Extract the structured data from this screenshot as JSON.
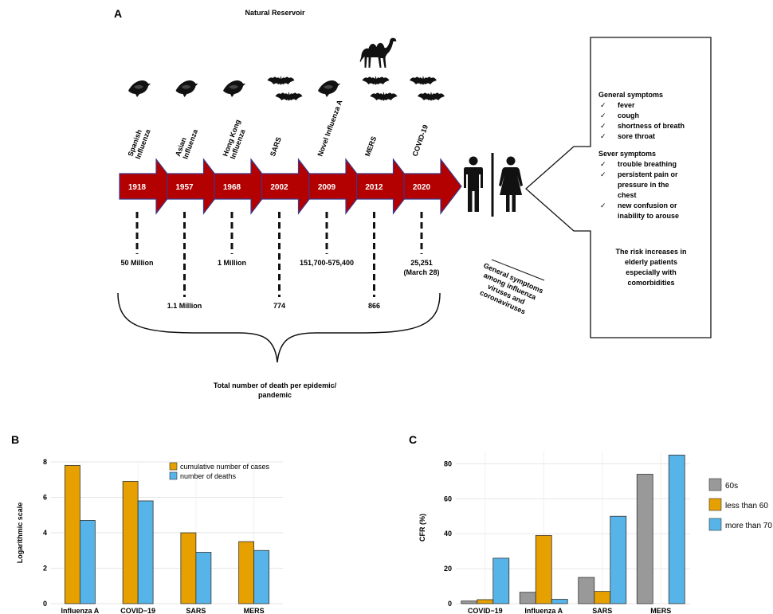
{
  "panel_a": {
    "label": "A",
    "reservoir_title": "Natural Reservoir",
    "events": [
      {
        "name_lines": [
          "Spanish",
          "Influenza"
        ],
        "year": "1918",
        "reservoir": "bird",
        "deaths": "50 Million",
        "deaths_sub": ""
      },
      {
        "name_lines": [
          "Asian",
          "Influenza"
        ],
        "year": "1957",
        "reservoir": "bird",
        "deaths": "1.1 Million",
        "deaths_sub": ""
      },
      {
        "name_lines": [
          "Hong Kong",
          "Influenza"
        ],
        "year": "1968",
        "reservoir": "bird",
        "deaths": "1 Million",
        "deaths_sub": ""
      },
      {
        "name_lines": [
          "SARS"
        ],
        "year": "2002",
        "reservoir": "bat",
        "deaths": "774",
        "deaths_sub": ""
      },
      {
        "name_lines": [
          "Novel Influenza A"
        ],
        "year": "2009",
        "reservoir": "bird",
        "deaths": "151,700-575,400",
        "deaths_sub": ""
      },
      {
        "name_lines": [
          "MERS"
        ],
        "year": "2012",
        "reservoir": "bat-camel",
        "deaths": "866",
        "deaths_sub": ""
      },
      {
        "name_lines": [
          "COVID-19"
        ],
        "year": "2020",
        "reservoir": "bat",
        "deaths": "25,251",
        "deaths_sub": "(March 28)"
      }
    ],
    "total_label_lines": [
      "Total number of death per epidemic/",
      "pandemic"
    ],
    "symptoms_caption_lines": [
      "General symptoms",
      "among influenza",
      "viruses and",
      "coronaviruses"
    ],
    "general_title": "General symptoms",
    "general_items": [
      "fever",
      "cough",
      "shortness of breath",
      "sore throat"
    ],
    "severe_title": "Sever symptoms",
    "severe_items": [
      [
        "trouble breathing"
      ],
      [
        "persistent pain or",
        "pressure in the",
        "chest"
      ],
      [
        "new confusion or",
        "inability to arouse"
      ]
    ],
    "risk_lines": [
      "The risk increases in",
      "elderly patients",
      "especially with",
      "comorbidities"
    ],
    "check_mark": "✓",
    "icons": {
      "bird": "bird-icon",
      "bat": "bat-icon",
      "camel": "camel-icon",
      "man": "man-icon",
      "woman": "woman-icon"
    },
    "colors": {
      "arrow": "#b30000",
      "arrow_edge": "#3a3a8c"
    }
  },
  "chart_data": [
    {
      "panel": "B",
      "type": "bar",
      "categories": [
        "Influenza A",
        "COVID-19",
        "SARS",
        "MERS"
      ],
      "category_labels": [
        "Influenza A",
        "COVID−19",
        "SARS",
        "MERS"
      ],
      "series": [
        {
          "name": "cumulative number of cases",
          "values": [
            7.8,
            6.9,
            4.0,
            3.5
          ],
          "color": "#e6a000"
        },
        {
          "name": "number of deaths",
          "values": [
            4.7,
            5.8,
            2.9,
            3.0
          ],
          "color": "#56b4e9"
        }
      ],
      "ylabel": "Logarithmic scale",
      "ylim": [
        0,
        8
      ],
      "yticks": [
        0,
        2,
        4,
        6,
        8
      ],
      "grid": true,
      "legend": "top-right"
    },
    {
      "panel": "C",
      "type": "bar",
      "categories": [
        "COVID-19",
        "Influenza A",
        "SARS",
        "MERS"
      ],
      "category_labels": [
        "COVID−19",
        "Influenza A",
        "SARS",
        "MERS"
      ],
      "series": [
        {
          "name": "60s",
          "values": [
            1.5,
            6.5,
            15,
            74
          ],
          "color": "#999999"
        },
        {
          "name": "less than 60",
          "values": [
            2.3,
            39,
            7,
            0
          ],
          "color": "#e6a000"
        },
        {
          "name": "more than 70",
          "values": [
            26,
            2.5,
            50,
            85
          ],
          "color": "#56b4e9"
        }
      ],
      "ylabel": "CFR (%)",
      "ylim": [
        0,
        87
      ],
      "yticks": [
        0,
        20,
        40,
        60,
        80
      ],
      "grid": true,
      "legend": "right"
    }
  ]
}
